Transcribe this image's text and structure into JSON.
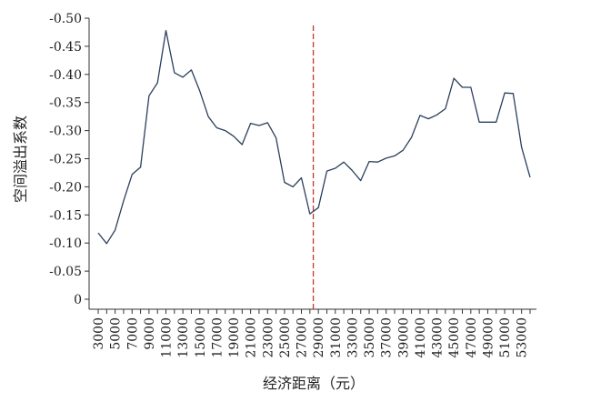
{
  "chart_data": {
    "type": "line",
    "xlabel": "经济距离（元）",
    "ylabel": "空间溢出系数",
    "y_ticks": [
      "-0.50",
      "-0.45",
      "-0.40",
      "-0.35",
      "-0.30",
      "-0.25",
      "-0.20",
      "-0.15",
      "-0.10",
      "-0.05",
      "0"
    ],
    "y_tick_values": [
      -0.5,
      -0.45,
      -0.4,
      -0.35,
      -0.3,
      -0.25,
      -0.2,
      -0.15,
      -0.1,
      -0.05,
      0
    ],
    "x_ticks": [
      "3000",
      "5000",
      "7000",
      "9000",
      "11000",
      "13000",
      "15000",
      "17000",
      "19000",
      "21000",
      "23000",
      "25000",
      "27000",
      "29000",
      "31000",
      "33000",
      "35000",
      "37000",
      "39000",
      "41000",
      "43000",
      "45000",
      "47000",
      "49000",
      "51000",
      "53000"
    ],
    "ylim": [
      0,
      -0.5
    ],
    "xlim": [
      2000,
      54000
    ],
    "grid": false,
    "line_color": "#2b3f5c",
    "ref_line_color": "#c0392b",
    "reference_line_x": 28400,
    "series": [
      {
        "x": [
          3000,
          4000,
          5000,
          6000,
          7000,
          8000,
          9000,
          10000,
          11000,
          12000,
          13000,
          14000,
          15000,
          16000,
          17000,
          18000,
          19000,
          20000,
          21000,
          22000,
          23000,
          24000,
          25000,
          26000,
          27000,
          28000,
          29000,
          30000,
          31000,
          32000,
          33000,
          34000,
          35000,
          36000,
          37000,
          38000,
          39000,
          40000,
          41000,
          42000,
          43000,
          44000,
          45000,
          46000,
          47000,
          48000,
          49000,
          50000,
          51000,
          52000,
          53000,
          54000
        ],
        "values": [
          -0.118,
          -0.099,
          -0.123,
          -0.175,
          -0.222,
          -0.235,
          -0.362,
          -0.385,
          -0.478,
          -0.403,
          -0.395,
          -0.408,
          -0.37,
          -0.325,
          -0.305,
          -0.3,
          -0.29,
          -0.275,
          -0.313,
          -0.309,
          -0.314,
          -0.287,
          -0.208,
          -0.2,
          -0.216,
          -0.152,
          -0.163,
          -0.228,
          -0.233,
          -0.244,
          -0.229,
          -0.211,
          -0.245,
          -0.244,
          -0.251,
          -0.255,
          -0.265,
          -0.288,
          -0.327,
          -0.321,
          -0.328,
          -0.339,
          -0.393,
          -0.377,
          -0.377,
          -0.315,
          -0.315,
          -0.315,
          -0.367,
          -0.366,
          -0.27,
          -0.217
        ]
      }
    ]
  }
}
